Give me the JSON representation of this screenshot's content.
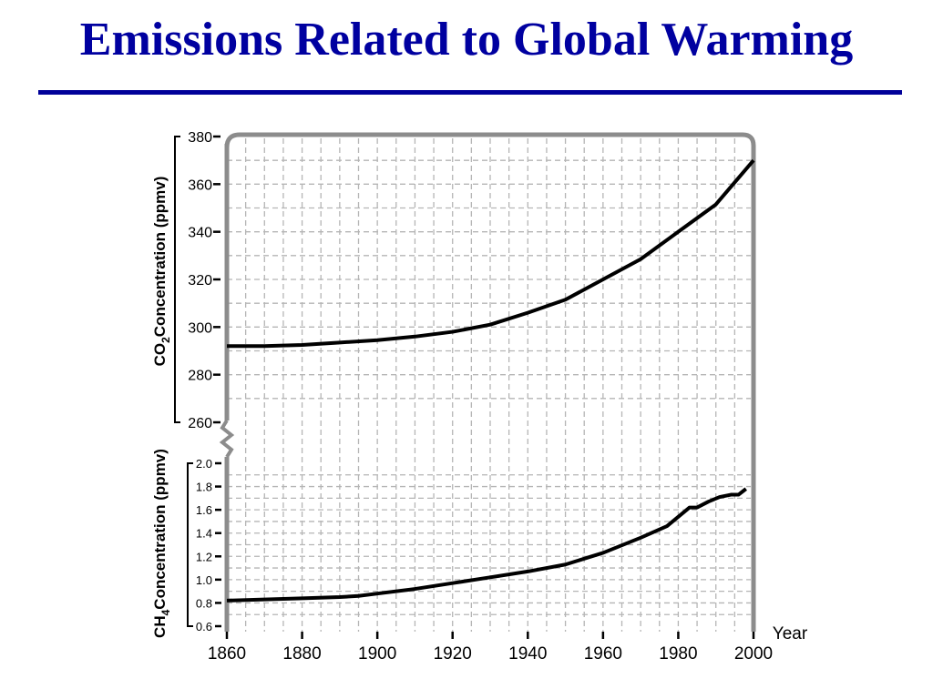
{
  "slide": {
    "title": "Emissions Related to Global Warming",
    "rule_color": "#000099"
  },
  "chart_data": [
    {
      "type": "line",
      "panel": "top",
      "title": "",
      "ylabel": "CO",
      "ylabel_subscript": "2",
      "ylabel_suffix": "Concentration (ppmv)",
      "xlim": [
        1860,
        2000
      ],
      "ylim": [
        260,
        380
      ],
      "yticks": [
        "260",
        "280",
        "300",
        "320",
        "340",
        "360",
        "380"
      ],
      "grid": true,
      "series": [
        {
          "x": [
            1860,
            1870,
            1880,
            1890,
            1900,
            1910,
            1920,
            1930,
            1940,
            1950,
            1960,
            1970,
            1980,
            1990,
            2000
          ],
          "values": [
            292,
            292,
            292.5,
            293.5,
            294.5,
            296,
            298,
            301,
            306,
            311.5,
            320,
            328.5,
            340,
            351.5,
            370
          ]
        }
      ]
    },
    {
      "type": "line",
      "panel": "bottom",
      "title": "",
      "ylabel": "CH",
      "ylabel_subscript": "4",
      "ylabel_suffix": "Concentration (ppmv)",
      "xlabel": "Year",
      "xlim": [
        1860,
        2000
      ],
      "ylim": [
        0.6,
        2.0
      ],
      "yticks": [
        "0.6",
        "0.8",
        "1.0",
        "1.2",
        "1.4",
        "1.6",
        "1.8",
        "2.0"
      ],
      "xticks": [
        "1860",
        "1880",
        "1900",
        "1920",
        "1940",
        "1960",
        "1980",
        "2000"
      ],
      "grid": true,
      "series": [
        {
          "x": [
            1860,
            1870,
            1880,
            1890,
            1895,
            1900,
            1910,
            1920,
            1930,
            1940,
            1950,
            1955,
            1960,
            1970,
            1977,
            1980,
            1983,
            1985,
            1988,
            1991,
            1994,
            1996,
            1998
          ],
          "values": [
            0.82,
            0.83,
            0.84,
            0.85,
            0.86,
            0.88,
            0.92,
            0.97,
            1.02,
            1.07,
            1.13,
            1.18,
            1.23,
            1.36,
            1.46,
            1.54,
            1.62,
            1.62,
            1.67,
            1.71,
            1.73,
            1.73,
            1.78
          ]
        }
      ]
    }
  ]
}
